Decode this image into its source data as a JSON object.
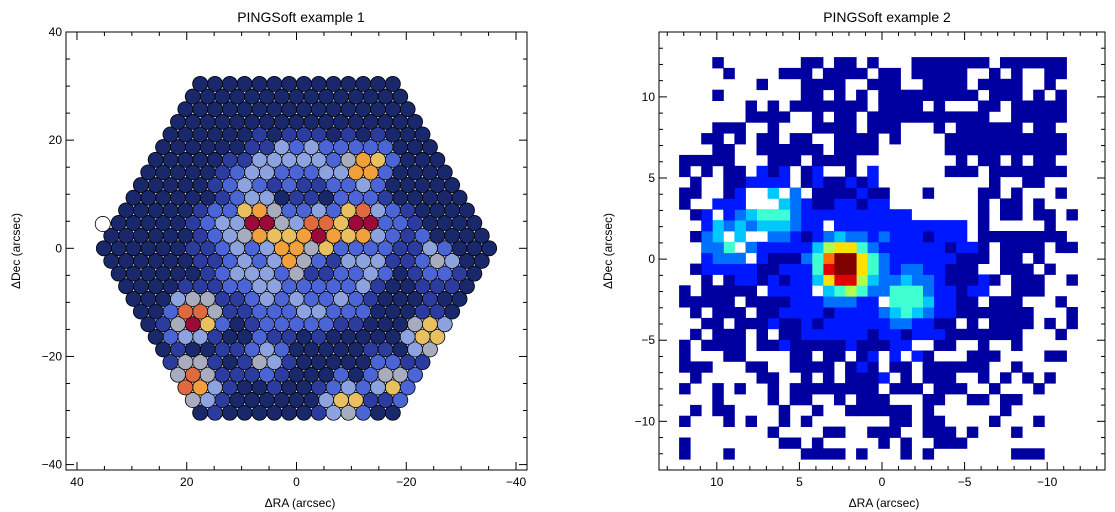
{
  "chart_data": [
    {
      "type": "heatmap",
      "title": "PINGSoft example 1",
      "xlabel": "ΔRA (arcsec)",
      "ylabel": "ΔDec (arcsec)",
      "xlim": [
        42,
        -42
      ],
      "ylim": [
        -41,
        40
      ],
      "xticks": [
        40,
        20,
        0,
        -20,
        -40
      ],
      "xtick_labels": [
        "40",
        "20",
        "0",
        "−20",
        "−40"
      ],
      "yticks": [
        40,
        20,
        0,
        -20,
        -40
      ],
      "ytick_labels": [
        "40",
        "20",
        "0",
        "−20",
        "−40"
      ],
      "grid": false,
      "spaxel_diameter_arcsec": 2.7,
      "layout": "hexagonal IFU bundle of circular fibers, flat-to-flat width about 72 arcsec, vertices at (±36, 0)",
      "hotspots": [
        {
          "ra": 6.5,
          "dec": 5,
          "level": 1.0
        },
        {
          "ra": -4,
          "dec": 3,
          "level": 0.95
        },
        {
          "ra": -11.5,
          "dec": 4.5,
          "level": 0.95
        },
        {
          "ra": -12,
          "dec": 15,
          "level": 0.8
        },
        {
          "ra": 1,
          "dec": -1,
          "level": 0.85
        },
        {
          "ra": 18.5,
          "dec": -12.5,
          "level": 0.95
        },
        {
          "ra": 19,
          "dec": -24.5,
          "level": 0.9
        },
        {
          "ra": -24,
          "dec": -16,
          "level": 0.65
        },
        {
          "ra": -17,
          "dec": -24,
          "level": 0.6
        },
        {
          "ra": -9,
          "dec": -28,
          "level": 0.6
        },
        {
          "ra": 6,
          "dec": -20,
          "level": 0.45
        },
        {
          "ra": -25,
          "dec": -2,
          "level": 0.5
        }
      ],
      "colors": [
        "#18286a",
        "#2b3c9e",
        "#4c65d6",
        "#8ca3e0",
        "#a8acbf",
        "#e8c060",
        "#f2a03c",
        "#e06a40",
        "#9c0a3a"
      ]
    },
    {
      "type": "heatmap",
      "title": "PINGSoft example 2",
      "xlabel": "ΔRA (arcsec)",
      "ylabel": "ΔDec (arcsec)",
      "xlim": [
        13.5,
        -13.5
      ],
      "ylim": [
        -13,
        14
      ],
      "xticks": [
        10,
        5,
        0,
        -5,
        -10
      ],
      "xtick_labels": [
        "10",
        "5",
        "0",
        "−5",
        "−10"
      ],
      "yticks": [
        10,
        5,
        0,
        -5,
        -10
      ],
      "ytick_labels": [
        "10",
        "5",
        "0",
        "−5",
        "−10"
      ],
      "grid": false,
      "pixel_size_arcsec": 0.67,
      "hotspots": [
        {
          "ra": 2.3,
          "dec": -0.5,
          "level": 1.0
        },
        {
          "ra": 6.5,
          "dec": 3.0,
          "level": 0.45
        },
        {
          "ra": 9.0,
          "dec": 1.2,
          "level": 0.4
        },
        {
          "ra": -1.5,
          "dec": -2.3,
          "level": 0.45
        }
      ],
      "colors": [
        "#0000a0",
        "#0018ff",
        "#0070ff",
        "#00c8ff",
        "#40ffd0",
        "#b0ff50",
        "#ffe000",
        "#ff7000",
        "#e00000",
        "#800000"
      ]
    }
  ]
}
